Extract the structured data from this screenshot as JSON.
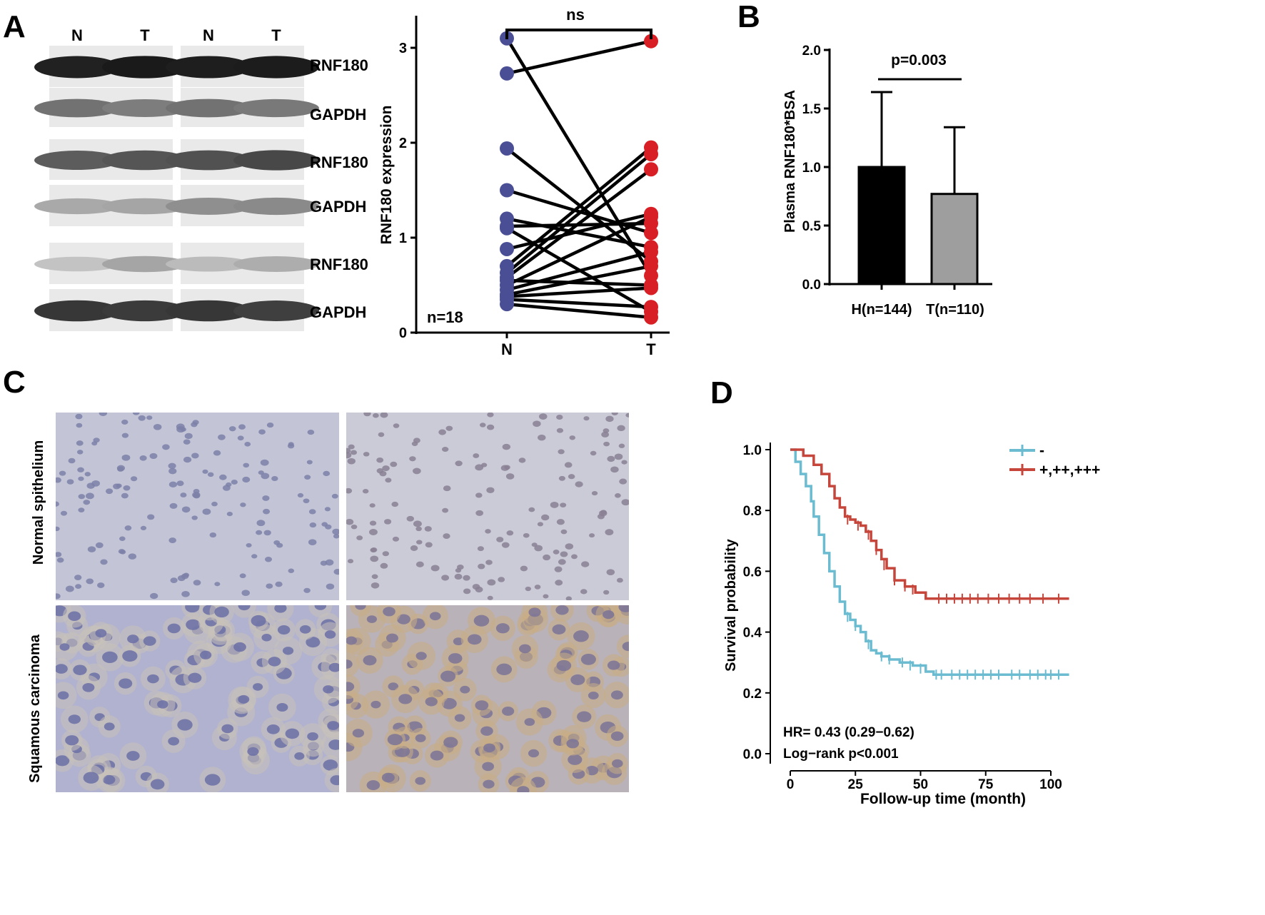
{
  "panels": {
    "a": "A",
    "b": "B",
    "c": "C",
    "d": "D"
  },
  "western_blot": {
    "lane_labels": [
      "N",
      "T",
      "N",
      "T"
    ],
    "rows": [
      {
        "label": "RNF180",
        "intensity": [
          0.92,
          0.95,
          0.93,
          0.94
        ]
      },
      {
        "label": "GAPDH",
        "intensity": [
          0.55,
          0.5,
          0.55,
          0.52
        ]
      },
      {
        "label": "RNF180",
        "intensity": [
          0.65,
          0.68,
          0.7,
          0.74
        ]
      },
      {
        "label": "GAPDH",
        "intensity": [
          0.3,
          0.32,
          0.42,
          0.44
        ]
      },
      {
        "label": "RNF180",
        "intensity": [
          0.18,
          0.32,
          0.22,
          0.28
        ]
      },
      {
        "label": "GAPDH",
        "intensity": [
          0.82,
          0.8,
          0.82,
          0.78
        ]
      }
    ]
  },
  "chart_data": [
    {
      "id": "paired-expression",
      "type": "scatter",
      "ylabel": "RNF180 expression",
      "xlabel": "",
      "categories": [
        "N",
        "T"
      ],
      "ylim": [
        0,
        3.3
      ],
      "yticks": [
        0,
        1,
        2,
        3
      ],
      "annotation_top": "ns",
      "annotation_n": "n=18",
      "colors": {
        "N": "#4a4f95",
        "T": "#d91f26"
      },
      "pairs": [
        [
          3.1,
          0.6
        ],
        [
          2.73,
          3.07
        ],
        [
          1.94,
          0.75
        ],
        [
          1.5,
          1.05
        ],
        [
          1.2,
          0.9
        ],
        [
          1.12,
          1.15
        ],
        [
          1.1,
          0.22
        ],
        [
          0.88,
          1.25
        ],
        [
          0.7,
          1.95
        ],
        [
          0.63,
          1.88
        ],
        [
          0.58,
          1.72
        ],
        [
          0.55,
          0.5
        ],
        [
          0.5,
          1.22
        ],
        [
          0.45,
          0.85
        ],
        [
          0.4,
          0.7
        ],
        [
          0.38,
          0.47
        ],
        [
          0.35,
          0.27
        ],
        [
          0.3,
          0.16
        ]
      ]
    },
    {
      "id": "plasma-bar",
      "type": "bar",
      "ylabel": "Plasma RNF180*BSA",
      "categories": [
        "H(n=144)",
        "T(n=110)"
      ],
      "values": [
        1.0,
        0.77
      ],
      "errors": [
        0.64,
        0.57
      ],
      "bar_colors": [
        "#000000",
        "#9e9e9e"
      ],
      "ylim": [
        0,
        2.0
      ],
      "yticks": [
        "0.0",
        "0.5",
        "1.0",
        "1.5",
        "2.0"
      ],
      "annotation": "p=0.003"
    },
    {
      "id": "km-survival",
      "type": "line",
      "xlabel": "Follow-up time (month)",
      "ylabel": "Survival probability",
      "xlim": [
        0,
        107
      ],
      "ylim": [
        0,
        1.0
      ],
      "xticks": [
        "0",
        "25",
        "50",
        "75",
        "100"
      ],
      "yticks": [
        "0.0",
        "0.2",
        "0.4",
        "0.6",
        "0.8",
        "1.0"
      ],
      "legend_position": "top-right",
      "annotations": [
        "HR= 0.43 (0.29−0.62)",
        "Log−rank p<0.001"
      ],
      "series": [
        {
          "name": "-",
          "color": "#6bbcd1",
          "x": [
            0,
            2,
            4,
            6,
            8,
            9,
            11,
            13,
            15,
            17,
            19,
            21,
            23,
            25,
            27,
            29,
            31,
            33,
            35,
            38,
            42,
            47,
            52,
            55,
            60,
            107
          ],
          "y": [
            1.0,
            0.96,
            0.92,
            0.88,
            0.83,
            0.78,
            0.72,
            0.66,
            0.6,
            0.55,
            0.5,
            0.46,
            0.44,
            0.42,
            0.4,
            0.37,
            0.34,
            0.33,
            0.32,
            0.31,
            0.3,
            0.29,
            0.27,
            0.26,
            0.26,
            0.26
          ],
          "censor_x": [
            22,
            25,
            30,
            35,
            38,
            43,
            46,
            50,
            56,
            58,
            62,
            65,
            68,
            71,
            74,
            77,
            80,
            85,
            88,
            92,
            95,
            98,
            100,
            103
          ],
          "censor_y": [
            0.45,
            0.42,
            0.36,
            0.32,
            0.31,
            0.3,
            0.29,
            0.28,
            0.26,
            0.26,
            0.26,
            0.26,
            0.26,
            0.26,
            0.26,
            0.26,
            0.26,
            0.26,
            0.26,
            0.26,
            0.26,
            0.26,
            0.26,
            0.26
          ]
        },
        {
          "name": "+,++,+++",
          "color": "#c6463c",
          "x": [
            0,
            5,
            9,
            12,
            15,
            17,
            19,
            21,
            23,
            25,
            27,
            29,
            31,
            33,
            35,
            37,
            40,
            44,
            48,
            52,
            107
          ],
          "y": [
            1.0,
            0.98,
            0.95,
            0.92,
            0.88,
            0.84,
            0.81,
            0.78,
            0.77,
            0.76,
            0.75,
            0.73,
            0.7,
            0.67,
            0.64,
            0.61,
            0.57,
            0.55,
            0.53,
            0.51,
            0.51
          ],
          "censor_x": [
            22,
            26,
            30,
            33,
            36,
            40,
            44,
            47,
            57,
            60,
            63,
            66,
            69,
            72,
            76,
            80,
            84,
            88,
            92,
            97,
            103
          ],
          "censor_y": [
            0.77,
            0.75,
            0.72,
            0.67,
            0.62,
            0.57,
            0.55,
            0.54,
            0.51,
            0.51,
            0.51,
            0.51,
            0.51,
            0.51,
            0.51,
            0.51,
            0.51,
            0.51,
            0.51,
            0.51,
            0.51
          ]
        }
      ]
    }
  ],
  "ihc": {
    "row_labels": [
      "Normal spithelium",
      "Squamous carcinoma"
    ],
    "tiles": [
      {
        "bg": "#c3c5d6",
        "cell": "#7d80a8",
        "stain": "#c3c5d6"
      },
      {
        "bg": "#cbcbd8",
        "cell": "#8a8094",
        "stain": "#cbcbd8"
      },
      {
        "bg": "#b0b2cf",
        "cell": "#6b70a6",
        "stain": "#c8c1b9"
      },
      {
        "bg": "#b9b2b8",
        "cell": "#7a7396",
        "stain": "#c8ad85"
      }
    ]
  }
}
